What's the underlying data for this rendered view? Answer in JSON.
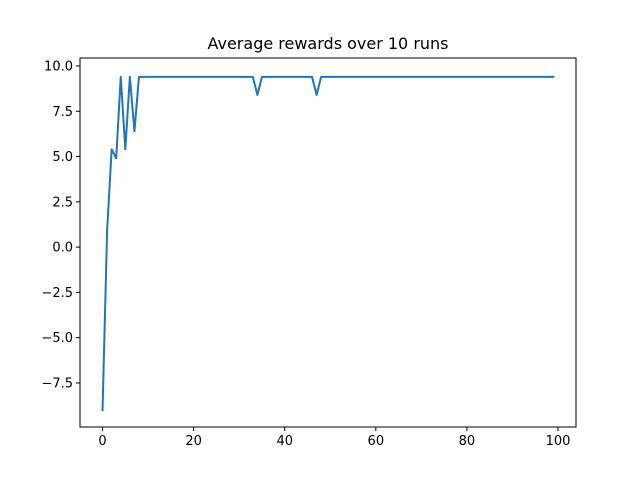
{
  "chart_data": {
    "type": "line",
    "title": "Average rewards over 10 runs",
    "xlabel": "",
    "ylabel": "",
    "xlim": [
      -4.95,
      103.95
    ],
    "ylim": [
      -9.93,
      10.44
    ],
    "xticks": [
      0,
      20,
      40,
      60,
      80,
      100
    ],
    "xtick_labels": [
      "0",
      "20",
      "40",
      "60",
      "80",
      "100"
    ],
    "yticks": [
      -7.5,
      -5.0,
      -2.5,
      0.0,
      2.5,
      5.0,
      7.5,
      10.0
    ],
    "ytick_labels": [
      "−7.5",
      "−5.0",
      "−2.5",
      "0.0",
      "2.5",
      "5.0",
      "7.5",
      "10.0"
    ],
    "grid": false,
    "series": [
      {
        "color": "#1f77b4",
        "x": [
          0,
          1,
          2,
          3,
          4,
          5,
          6,
          7,
          8,
          9,
          10,
          11,
          12,
          13,
          14,
          15,
          16,
          17,
          18,
          19,
          20,
          21,
          22,
          23,
          24,
          25,
          26,
          27,
          28,
          29,
          30,
          31,
          32,
          33,
          34,
          35,
          36,
          37,
          38,
          39,
          40,
          41,
          42,
          43,
          44,
          45,
          46,
          47,
          48,
          49,
          50,
          51,
          52,
          53,
          54,
          55,
          56,
          57,
          58,
          59,
          60,
          61,
          62,
          63,
          64,
          65,
          66,
          67,
          68,
          69,
          70,
          71,
          72,
          73,
          74,
          75,
          76,
          77,
          78,
          79,
          80,
          81,
          82,
          83,
          84,
          85,
          86,
          87,
          88,
          89,
          90,
          91,
          92,
          93,
          94,
          95,
          96,
          97,
          98,
          99
        ],
        "values": [
          -9.0,
          0.9,
          5.4,
          4.9,
          9.4,
          5.4,
          9.4,
          6.4,
          9.4,
          9.4,
          9.4,
          9.4,
          9.4,
          9.4,
          9.4,
          9.4,
          9.4,
          9.4,
          9.4,
          9.4,
          9.4,
          9.4,
          9.4,
          9.4,
          9.4,
          9.4,
          9.4,
          9.4,
          9.4,
          9.4,
          9.4,
          9.4,
          9.4,
          9.4,
          8.4,
          9.4,
          9.4,
          9.4,
          9.4,
          9.4,
          9.4,
          9.4,
          9.4,
          9.4,
          9.4,
          9.4,
          9.4,
          8.4,
          9.4,
          9.4,
          9.4,
          9.4,
          9.4,
          9.4,
          9.4,
          9.4,
          9.4,
          9.4,
          9.4,
          9.4,
          9.4,
          9.4,
          9.4,
          9.4,
          9.4,
          9.4,
          9.4,
          9.4,
          9.4,
          9.4,
          9.4,
          9.4,
          9.4,
          9.4,
          9.4,
          9.4,
          9.4,
          9.4,
          9.4,
          9.4,
          9.4,
          9.4,
          9.4,
          9.4,
          9.4,
          9.4,
          9.4,
          9.4,
          9.4,
          9.4,
          9.4,
          9.4,
          9.4,
          9.4,
          9.4,
          9.4,
          9.4,
          9.4,
          9.4,
          9.4
        ]
      }
    ]
  }
}
